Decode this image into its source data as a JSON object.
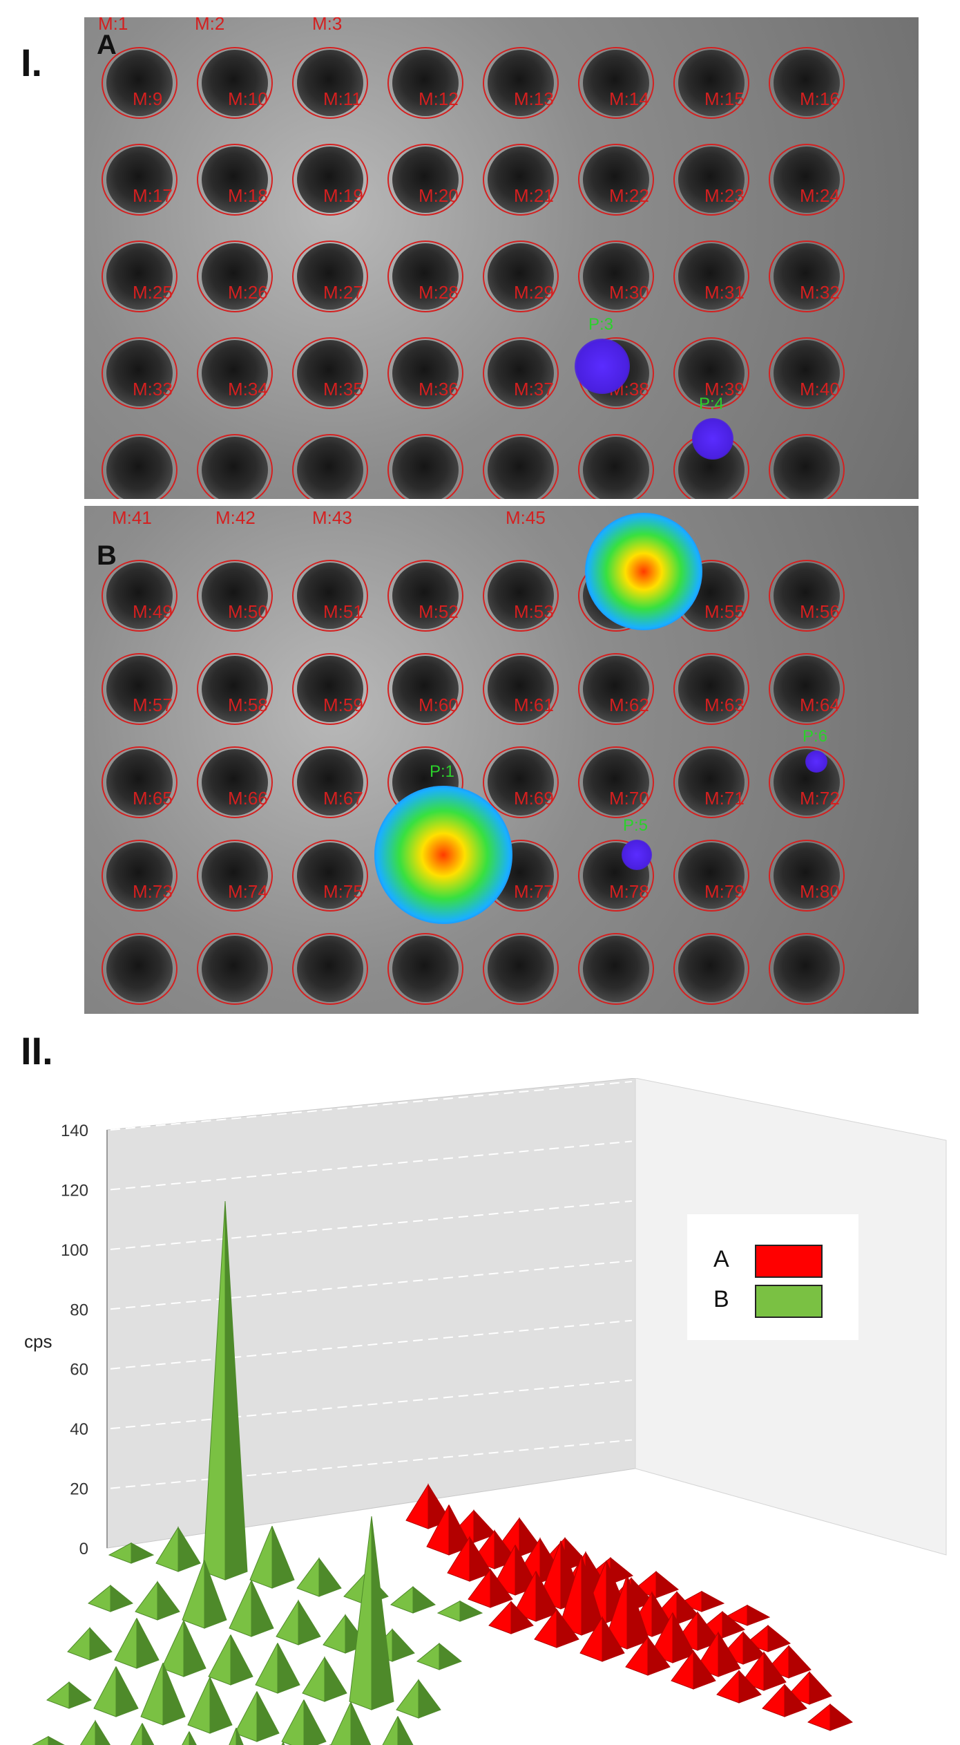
{
  "figure": {
    "panel_I_label": "I.",
    "panel_II_label": "II.",
    "plate_A_label": "A",
    "plate_B_label": "B"
  },
  "plate_A": {
    "roi_labels": [
      "M:9",
      "M:10",
      "M:11",
      "M:12",
      "M:13",
      "M:14",
      "M:15",
      "M:16",
      "M:17",
      "M:18",
      "M:19",
      "M:20",
      "M:21",
      "M:22",
      "M:23",
      "M:24",
      "M:25",
      "M:26",
      "M:27",
      "M:28",
      "M:29",
      "M:30",
      "M:31",
      "M:32",
      "M:33",
      "M:34",
      "M:35",
      "M:36",
      "M:37",
      "M:38",
      "M:39",
      "M:40"
    ],
    "top_labels": [
      "M:1",
      "M:2",
      "M:3"
    ],
    "hotspots": [
      "P:3",
      "P:4"
    ]
  },
  "plate_B": {
    "roi_labels": [
      "M:49",
      "M:50",
      "M:51",
      "M:52",
      "M:53",
      "M:54",
      "M:55",
      "M:56",
      "M:57",
      "M:58",
      "M:59",
      "M:60",
      "M:61",
      "M:62",
      "M:63",
      "M:64",
      "M:65",
      "M:66",
      "M:67",
      "M:68",
      "M:69",
      "M:70",
      "M:71",
      "M:72",
      "M:73",
      "M:74",
      "M:75",
      "M:76",
      "M:77",
      "M:78",
      "M:79",
      "M:80"
    ],
    "top_labels": [
      "M:41",
      "M:42",
      "M:43",
      "M:45"
    ],
    "hotspots": [
      "P:2",
      "P:1",
      "P:5",
      "P:6"
    ]
  },
  "chart_data": {
    "type": "bar",
    "title": "",
    "xlabel": "",
    "ylabel": "cps",
    "ylim": [
      0,
      140
    ],
    "yticks": [
      0,
      20,
      40,
      60,
      80,
      100,
      120,
      140
    ],
    "legend_position": "right",
    "series": [
      {
        "name": "A",
        "color": "#ff0000",
        "rows": [
          [
            12,
            8,
            10,
            8,
            6,
            6,
            4,
            4
          ],
          [
            14,
            10,
            12,
            12,
            8,
            8,
            6,
            6
          ],
          [
            12,
            14,
            20,
            18,
            12,
            10,
            8,
            8
          ],
          [
            10,
            14,
            24,
            22,
            14,
            12,
            10,
            8
          ],
          [
            8,
            10,
            12,
            10,
            10,
            8,
            8,
            6
          ]
        ]
      },
      {
        "name": "B",
        "color": "#7ac143",
        "rows": [
          [
            4,
            12,
            124,
            18,
            10,
            8,
            6,
            4
          ],
          [
            6,
            10,
            20,
            16,
            12,
            10,
            8,
            6
          ],
          [
            8,
            14,
            16,
            14,
            14,
            12,
            62,
            10
          ],
          [
            6,
            14,
            18,
            16,
            14,
            14,
            16,
            14
          ],
          [
            4,
            12,
            14,
            14,
            18,
            16,
            18,
            18
          ]
        ]
      }
    ]
  }
}
